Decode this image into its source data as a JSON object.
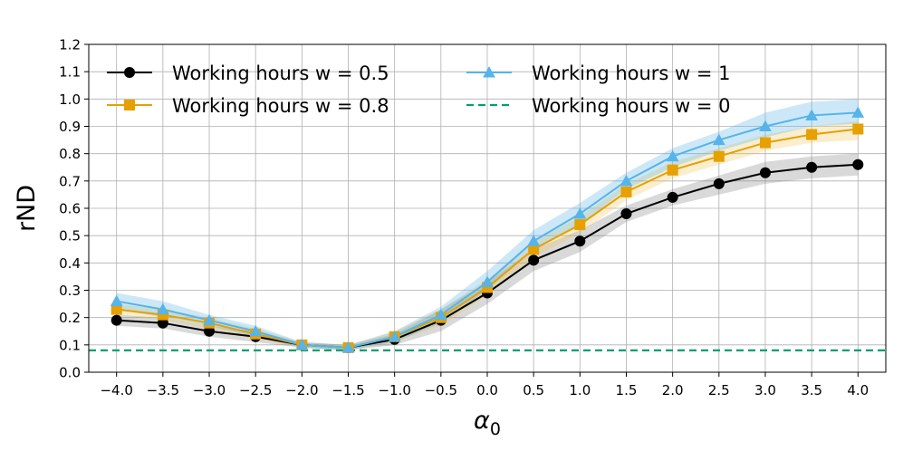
{
  "chart_data": {
    "type": "line",
    "xlabel": "α₀",
    "xlabel_base": "α",
    "xlabel_sub": "0",
    "ylabel": "rND",
    "xlim": [
      -4.3,
      4.3
    ],
    "ylim": [
      0.0,
      1.2
    ],
    "grid": true,
    "legend_position": "top",
    "x": [
      -4.0,
      -3.5,
      -3.0,
      -2.5,
      -2.0,
      -1.5,
      -1.0,
      -0.5,
      0.0,
      0.5,
      1.0,
      1.5,
      2.0,
      2.5,
      3.0,
      3.5,
      4.0
    ],
    "x_tick_labels": [
      "−4.0",
      "−3.5",
      "−3.0",
      "−2.5",
      "−2.0",
      "−1.5",
      "−1.0",
      "−0.5",
      "0.0",
      "0.5",
      "1.0",
      "1.5",
      "2.0",
      "2.5",
      "3.0",
      "3.5",
      "4.0"
    ],
    "y_ticks": [
      0.0,
      0.1,
      0.2,
      0.3,
      0.4,
      0.5,
      0.6,
      0.7,
      0.8,
      0.9,
      1.0,
      1.1,
      1.2
    ],
    "y_tick_labels": [
      "0.0",
      "0.1",
      "0.2",
      "0.3",
      "0.4",
      "0.5",
      "0.6",
      "0.7",
      "0.8",
      "0.9",
      "1.0",
      "1.1",
      "1.2"
    ],
    "series": [
      {
        "name": "Working hours w = 0.5",
        "color": "#000000",
        "band_color": "#808080",
        "marker": "circle",
        "values": [
          0.19,
          0.18,
          0.15,
          0.13,
          0.1,
          0.09,
          0.12,
          0.19,
          0.29,
          0.41,
          0.48,
          0.58,
          0.64,
          0.69,
          0.73,
          0.75,
          0.76
        ],
        "lower": [
          0.17,
          0.16,
          0.13,
          0.11,
          0.09,
          0.08,
          0.1,
          0.15,
          0.25,
          0.37,
          0.44,
          0.55,
          0.61,
          0.65,
          0.69,
          0.71,
          0.72
        ],
        "upper": [
          0.21,
          0.2,
          0.17,
          0.15,
          0.11,
          0.1,
          0.14,
          0.23,
          0.33,
          0.45,
          0.52,
          0.61,
          0.67,
          0.72,
          0.77,
          0.79,
          0.8
        ]
      },
      {
        "name": "Working hours w = 0.8",
        "color": "#E6A000",
        "band_color": "#F0C860",
        "marker": "square",
        "values": [
          0.23,
          0.21,
          0.18,
          0.14,
          0.1,
          0.09,
          0.13,
          0.2,
          0.31,
          0.45,
          0.54,
          0.66,
          0.74,
          0.79,
          0.84,
          0.87,
          0.89
        ],
        "lower": [
          0.21,
          0.19,
          0.16,
          0.12,
          0.09,
          0.08,
          0.11,
          0.17,
          0.28,
          0.42,
          0.51,
          0.63,
          0.71,
          0.76,
          0.81,
          0.84,
          0.85
        ],
        "upper": [
          0.25,
          0.23,
          0.2,
          0.16,
          0.11,
          0.1,
          0.15,
          0.23,
          0.34,
          0.48,
          0.57,
          0.69,
          0.77,
          0.82,
          0.87,
          0.9,
          0.92
        ]
      },
      {
        "name": "Working hours w = 1",
        "color": "#56B4E9",
        "band_color": "#56B4E9",
        "marker": "triangle",
        "values": [
          0.26,
          0.23,
          0.19,
          0.15,
          0.1,
          0.09,
          0.13,
          0.21,
          0.33,
          0.48,
          0.58,
          0.7,
          0.79,
          0.85,
          0.9,
          0.94,
          0.95
        ],
        "lower": [
          0.23,
          0.2,
          0.17,
          0.13,
          0.09,
          0.08,
          0.11,
          0.18,
          0.3,
          0.45,
          0.54,
          0.67,
          0.75,
          0.81,
          0.86,
          0.9,
          0.91
        ],
        "upper": [
          0.29,
          0.26,
          0.21,
          0.17,
          0.11,
          0.1,
          0.15,
          0.24,
          0.37,
          0.52,
          0.62,
          0.73,
          0.82,
          0.88,
          0.95,
          0.99,
          1.0
        ]
      },
      {
        "name": "Working hours w = 0",
        "color": "#009E73",
        "style": "dashed",
        "constant": 0.08
      }
    ]
  }
}
